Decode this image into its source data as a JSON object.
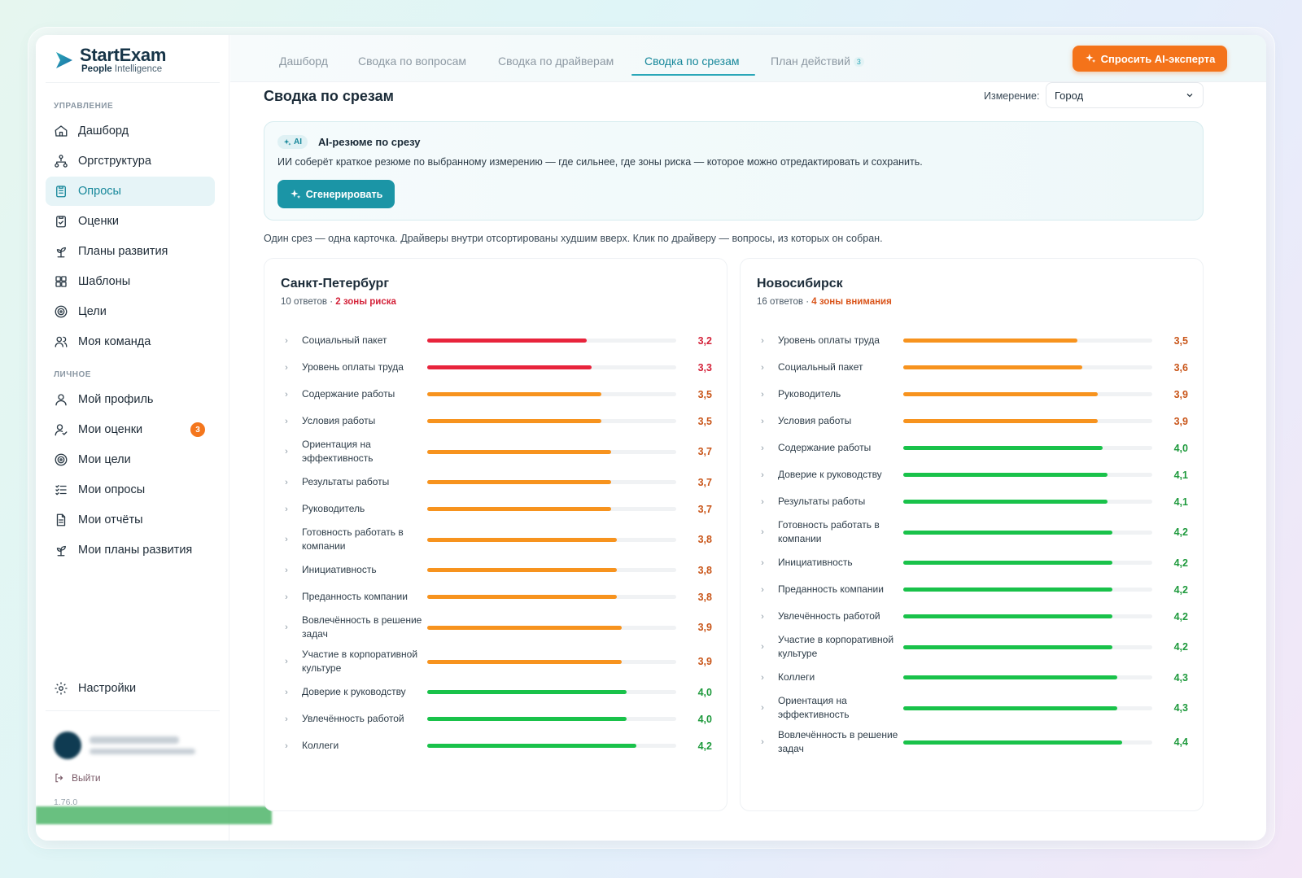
{
  "app": {
    "brand_name": "StartExam",
    "brand_sub_bold": "People",
    "brand_sub_rest": " Intelligence"
  },
  "sidebar": {
    "section_manage": "УПРАВЛЕНИЕ",
    "section_personal": "ЛИЧНОЕ",
    "manage_items": [
      {
        "label": "Дашборд",
        "icon": "home-icon"
      },
      {
        "label": "Оргструктура",
        "icon": "org-structure-icon"
      },
      {
        "label": "Опросы",
        "icon": "clipboard-icon",
        "active": true
      },
      {
        "label": "Оценки",
        "icon": "clipboard-check-icon"
      },
      {
        "label": "Планы развития",
        "icon": "sprout-icon"
      },
      {
        "label": "Шаблоны",
        "icon": "grid-icon"
      },
      {
        "label": "Цели",
        "icon": "target-icon"
      },
      {
        "label": "Моя команда",
        "icon": "users-icon"
      }
    ],
    "personal_items": [
      {
        "label": "Мой профиль",
        "icon": "user-icon"
      },
      {
        "label": "Мои оценки",
        "icon": "user-check-icon",
        "badge": "3"
      },
      {
        "label": "Мои цели",
        "icon": "target-icon"
      },
      {
        "label": "Мои опросы",
        "icon": "checklist-icon"
      },
      {
        "label": "Мои отчёты",
        "icon": "document-icon"
      },
      {
        "label": "Мои планы развития",
        "icon": "sprout-icon"
      }
    ],
    "settings_label": "Настройки",
    "logout_label": "Выйти",
    "version": "1.76.0"
  },
  "tabs": [
    {
      "label": "Дашборд"
    },
    {
      "label": "Сводка по вопросам"
    },
    {
      "label": "Сводка по драйверам"
    },
    {
      "label": "Сводка по срезам",
      "active": true
    },
    {
      "label": "План действий",
      "badge": "3"
    }
  ],
  "ask_ai_label": "Спросить AI-эксперта",
  "page": {
    "title": "Сводка по срезам",
    "dimension_label": "Измерение:",
    "dimension_value": "Город",
    "ai_tag": "AI",
    "ai_title": "AI-резюме по срезу",
    "ai_desc": "ИИ соберёт краткое резюме по выбранному измерению — где сильнее, где зоны риска — которое можно отредактировать и сохранить.",
    "generate_label": "Сгенерировать",
    "hint": "Один срез — одна карточка. Драйверы внутри отсортированы худшим вверх. Клик по драйверу — вопросы, из которых он собран."
  },
  "colors": {
    "red": "#e8243c",
    "orange": "#f7931e",
    "green": "#19c24a",
    "red_text": "#d4233a",
    "orange_text": "#c9561a",
    "green_text": "#1f9a3d"
  },
  "scale_max": 5,
  "cards": [
    {
      "title": "Санкт-Петербург",
      "responses": "10 ответов · ",
      "risk_label": "2 зоны риска",
      "risk_color": "#d4233a",
      "drivers": [
        {
          "name": "Социальный пакет",
          "value": "3,2",
          "score": 3.2,
          "level": "red"
        },
        {
          "name": "Уровень оплаты труда",
          "value": "3,3",
          "score": 3.3,
          "level": "red"
        },
        {
          "name": "Содержание работы",
          "value": "3,5",
          "score": 3.5,
          "level": "orange"
        },
        {
          "name": "Условия работы",
          "value": "3,5",
          "score": 3.5,
          "level": "orange"
        },
        {
          "name": "Ориентация на эффективность",
          "value": "3,7",
          "score": 3.7,
          "level": "orange"
        },
        {
          "name": "Результаты работы",
          "value": "3,7",
          "score": 3.7,
          "level": "orange"
        },
        {
          "name": "Руководитель",
          "value": "3,7",
          "score": 3.7,
          "level": "orange"
        },
        {
          "name": "Готовность работать в компании",
          "value": "3,8",
          "score": 3.8,
          "level": "orange"
        },
        {
          "name": "Инициативность",
          "value": "3,8",
          "score": 3.8,
          "level": "orange"
        },
        {
          "name": "Преданность компании",
          "value": "3,8",
          "score": 3.8,
          "level": "orange"
        },
        {
          "name": "Вовлечённость в решение задач",
          "value": "3,9",
          "score": 3.9,
          "level": "orange"
        },
        {
          "name": "Участие в корпоративной культуре",
          "value": "3,9",
          "score": 3.9,
          "level": "orange"
        },
        {
          "name": "Доверие к руководству",
          "value": "4,0",
          "score": 4.0,
          "level": "green"
        },
        {
          "name": "Увлечённость работой",
          "value": "4,0",
          "score": 4.0,
          "level": "green"
        },
        {
          "name": "Коллеги",
          "value": "4,2",
          "score": 4.2,
          "level": "green"
        }
      ]
    },
    {
      "title": "Новосибирск",
      "responses": "16 ответов · ",
      "risk_label": "4 зоны внимания",
      "risk_color": "#d9541a",
      "drivers": [
        {
          "name": "Уровень оплаты труда",
          "value": "3,5",
          "score": 3.5,
          "level": "orange"
        },
        {
          "name": "Социальный пакет",
          "value": "3,6",
          "score": 3.6,
          "level": "orange"
        },
        {
          "name": "Руководитель",
          "value": "3,9",
          "score": 3.9,
          "level": "orange"
        },
        {
          "name": "Условия работы",
          "value": "3,9",
          "score": 3.9,
          "level": "orange"
        },
        {
          "name": "Содержание работы",
          "value": "4,0",
          "score": 4.0,
          "level": "green"
        },
        {
          "name": "Доверие к руководству",
          "value": "4,1",
          "score": 4.1,
          "level": "green"
        },
        {
          "name": "Результаты работы",
          "value": "4,1",
          "score": 4.1,
          "level": "green"
        },
        {
          "name": "Готовность работать в компании",
          "value": "4,2",
          "score": 4.2,
          "level": "green"
        },
        {
          "name": "Инициативность",
          "value": "4,2",
          "score": 4.2,
          "level": "green"
        },
        {
          "name": "Преданность компании",
          "value": "4,2",
          "score": 4.2,
          "level": "green"
        },
        {
          "name": "Увлечённость работой",
          "value": "4,2",
          "score": 4.2,
          "level": "green"
        },
        {
          "name": "Участие в корпоративной культуре",
          "value": "4,2",
          "score": 4.2,
          "level": "green"
        },
        {
          "name": "Коллеги",
          "value": "4,3",
          "score": 4.3,
          "level": "green"
        },
        {
          "name": "Ориентация на эффективность",
          "value": "4,3",
          "score": 4.3,
          "level": "green"
        },
        {
          "name": "Вовлечённость в решение задач",
          "value": "4,4",
          "score": 4.4,
          "level": "green"
        }
      ]
    }
  ]
}
